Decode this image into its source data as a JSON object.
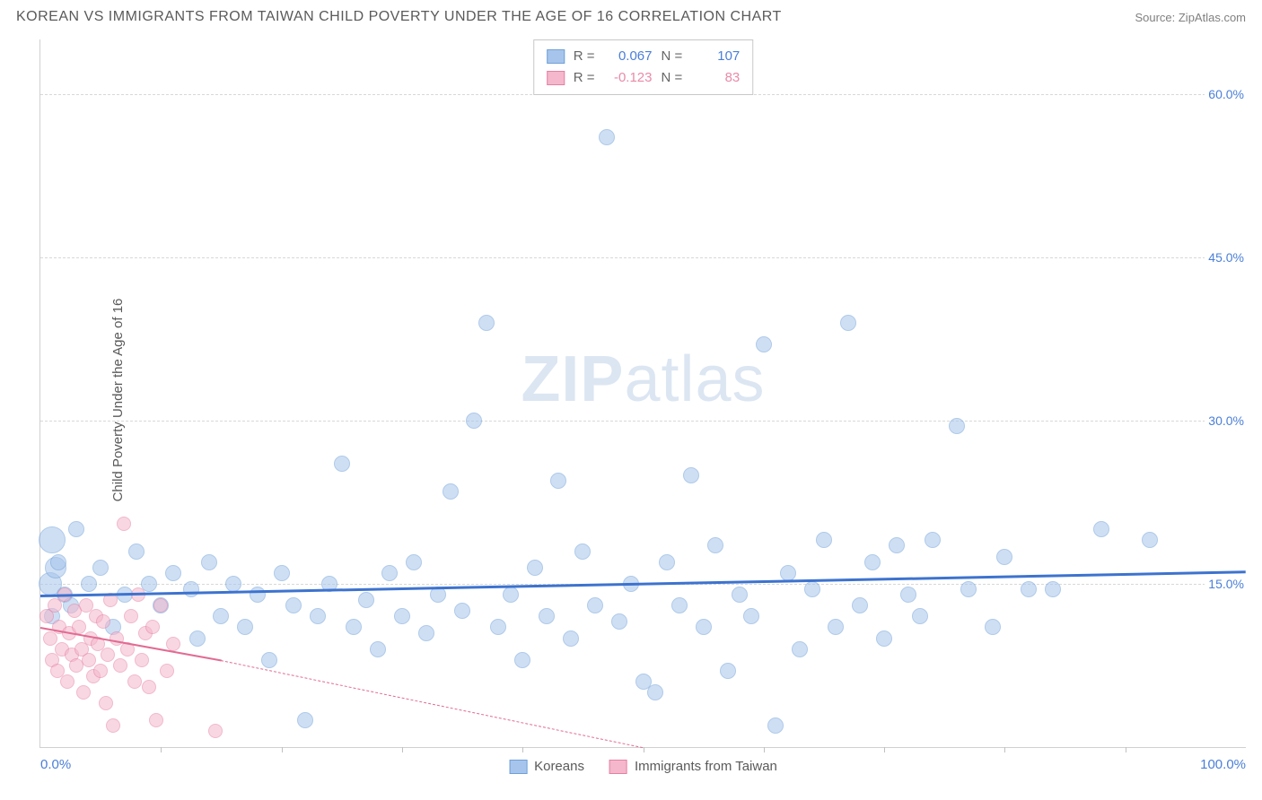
{
  "header": {
    "title": "KOREAN VS IMMIGRANTS FROM TAIWAN CHILD POVERTY UNDER THE AGE OF 16 CORRELATION CHART",
    "source": "Source: ZipAtlas.com"
  },
  "watermark": {
    "zip": "ZIP",
    "atlas": "atlas"
  },
  "chart": {
    "type": "scatter",
    "y_label": "Child Poverty Under the Age of 16",
    "xlim": [
      0,
      100
    ],
    "ylim": [
      0,
      65
    ],
    "x_ticks": {
      "min": "0.0%",
      "max": "100.0%",
      "minor_step": 10
    },
    "y_ticks": [
      {
        "value": 15,
        "label": "15.0%"
      },
      {
        "value": 30,
        "label": "30.0%"
      },
      {
        "value": 45,
        "label": "45.0%"
      },
      {
        "value": 60,
        "label": "60.0%"
      }
    ],
    "background_color": "#ffffff",
    "grid_color": "#d8d8d8",
    "series": [
      {
        "name": "Koreans",
        "fill": "#a7c5ec",
        "stroke": "#6f9fd8",
        "fill_opacity": 0.55,
        "marker_radius": 9,
        "trend": {
          "x1": 0,
          "y1": 14.0,
          "x2": 100,
          "y2": 16.2,
          "color": "#3d73cf",
          "width": 2.5
        },
        "points": [
          {
            "x": 1,
            "y": 19,
            "r": 15
          },
          {
            "x": 0.8,
            "y": 15,
            "r": 13
          },
          {
            "x": 1.3,
            "y": 16.5,
            "r": 12
          },
          {
            "x": 1,
            "y": 12
          },
          {
            "x": 2,
            "y": 14
          },
          {
            "x": 1.5,
            "y": 17
          },
          {
            "x": 3,
            "y": 20
          },
          {
            "x": 2.5,
            "y": 13
          },
          {
            "x": 4,
            "y": 15
          },
          {
            "x": 5,
            "y": 16.5
          },
          {
            "x": 6,
            "y": 11
          },
          {
            "x": 7,
            "y": 14
          },
          {
            "x": 8,
            "y": 18
          },
          {
            "x": 9,
            "y": 15
          },
          {
            "x": 10,
            "y": 13
          },
          {
            "x": 11,
            "y": 16
          },
          {
            "x": 12.5,
            "y": 14.5
          },
          {
            "x": 13,
            "y": 10
          },
          {
            "x": 14,
            "y": 17
          },
          {
            "x": 15,
            "y": 12
          },
          {
            "x": 16,
            "y": 15
          },
          {
            "x": 17,
            "y": 11
          },
          {
            "x": 18,
            "y": 14
          },
          {
            "x": 19,
            "y": 8
          },
          {
            "x": 20,
            "y": 16
          },
          {
            "x": 21,
            "y": 13
          },
          {
            "x": 22,
            "y": 2.5
          },
          {
            "x": 23,
            "y": 12
          },
          {
            "x": 24,
            "y": 15
          },
          {
            "x": 25,
            "y": 26
          },
          {
            "x": 26,
            "y": 11
          },
          {
            "x": 27,
            "y": 13.5
          },
          {
            "x": 28,
            "y": 9
          },
          {
            "x": 29,
            "y": 16
          },
          {
            "x": 30,
            "y": 12
          },
          {
            "x": 31,
            "y": 17
          },
          {
            "x": 32,
            "y": 10.5
          },
          {
            "x": 33,
            "y": 14
          },
          {
            "x": 34,
            "y": 23.5
          },
          {
            "x": 35,
            "y": 12.5
          },
          {
            "x": 36,
            "y": 30
          },
          {
            "x": 37,
            "y": 39
          },
          {
            "x": 38,
            "y": 11
          },
          {
            "x": 39,
            "y": 14
          },
          {
            "x": 40,
            "y": 8
          },
          {
            "x": 41,
            "y": 16.5
          },
          {
            "x": 42,
            "y": 12
          },
          {
            "x": 43,
            "y": 24.5
          },
          {
            "x": 44,
            "y": 10
          },
          {
            "x": 45,
            "y": 18
          },
          {
            "x": 46,
            "y": 13
          },
          {
            "x": 47,
            "y": 56
          },
          {
            "x": 48,
            "y": 11.5
          },
          {
            "x": 49,
            "y": 15
          },
          {
            "x": 50,
            "y": 6
          },
          {
            "x": 51,
            "y": 5
          },
          {
            "x": 52,
            "y": 17
          },
          {
            "x": 53,
            "y": 13
          },
          {
            "x": 54,
            "y": 25
          },
          {
            "x": 55,
            "y": 11
          },
          {
            "x": 56,
            "y": 18.5
          },
          {
            "x": 57,
            "y": 7
          },
          {
            "x": 58,
            "y": 14
          },
          {
            "x": 59,
            "y": 12
          },
          {
            "x": 60,
            "y": 37
          },
          {
            "x": 61,
            "y": 2
          },
          {
            "x": 62,
            "y": 16
          },
          {
            "x": 63,
            "y": 9
          },
          {
            "x": 64,
            "y": 14.5
          },
          {
            "x": 65,
            "y": 19
          },
          {
            "x": 66,
            "y": 11
          },
          {
            "x": 67,
            "y": 39
          },
          {
            "x": 68,
            "y": 13
          },
          {
            "x": 69,
            "y": 17
          },
          {
            "x": 70,
            "y": 10
          },
          {
            "x": 71,
            "y": 18.5
          },
          {
            "x": 72,
            "y": 14
          },
          {
            "x": 73,
            "y": 12
          },
          {
            "x": 74,
            "y": 19
          },
          {
            "x": 76,
            "y": 29.5
          },
          {
            "x": 77,
            "y": 14.5
          },
          {
            "x": 79,
            "y": 11
          },
          {
            "x": 80,
            "y": 17.5
          },
          {
            "x": 82,
            "y": 14.5
          },
          {
            "x": 84,
            "y": 14.5
          },
          {
            "x": 88,
            "y": 20
          },
          {
            "x": 92,
            "y": 19
          }
        ]
      },
      {
        "name": "Immigrants from Taiwan",
        "fill": "#f4b7cb",
        "stroke": "#e67fa3",
        "fill_opacity": 0.55,
        "marker_radius": 8,
        "trend": {
          "x1": 0,
          "y1": 11.0,
          "x2": 15,
          "y2": 8.0,
          "dash_to_x": 50,
          "dash_to_y": 0,
          "color": "#e26b93",
          "width": 2
        },
        "points": [
          {
            "x": 0.5,
            "y": 12
          },
          {
            "x": 0.8,
            "y": 10
          },
          {
            "x": 1,
            "y": 8
          },
          {
            "x": 1.2,
            "y": 13
          },
          {
            "x": 1.4,
            "y": 7
          },
          {
            "x": 1.6,
            "y": 11
          },
          {
            "x": 1.8,
            "y": 9
          },
          {
            "x": 2,
            "y": 14
          },
          {
            "x": 2.2,
            "y": 6
          },
          {
            "x": 2.4,
            "y": 10.5
          },
          {
            "x": 2.6,
            "y": 8.5
          },
          {
            "x": 2.8,
            "y": 12.5
          },
          {
            "x": 3,
            "y": 7.5
          },
          {
            "x": 3.2,
            "y": 11
          },
          {
            "x": 3.4,
            "y": 9
          },
          {
            "x": 3.6,
            "y": 5
          },
          {
            "x": 3.8,
            "y": 13
          },
          {
            "x": 4,
            "y": 8
          },
          {
            "x": 4.2,
            "y": 10
          },
          {
            "x": 4.4,
            "y": 6.5
          },
          {
            "x": 4.6,
            "y": 12
          },
          {
            "x": 4.8,
            "y": 9.5
          },
          {
            "x": 5,
            "y": 7
          },
          {
            "x": 5.2,
            "y": 11.5
          },
          {
            "x": 5.4,
            "y": 4
          },
          {
            "x": 5.6,
            "y": 8.5
          },
          {
            "x": 5.8,
            "y": 13.5
          },
          {
            "x": 6,
            "y": 2
          },
          {
            "x": 6.3,
            "y": 10
          },
          {
            "x": 6.6,
            "y": 7.5
          },
          {
            "x": 6.9,
            "y": 20.5
          },
          {
            "x": 7.2,
            "y": 9
          },
          {
            "x": 7.5,
            "y": 12
          },
          {
            "x": 7.8,
            "y": 6
          },
          {
            "x": 8.1,
            "y": 14
          },
          {
            "x": 8.4,
            "y": 8
          },
          {
            "x": 8.7,
            "y": 10.5
          },
          {
            "x": 9,
            "y": 5.5
          },
          {
            "x": 9.3,
            "y": 11
          },
          {
            "x": 9.6,
            "y": 2.5
          },
          {
            "x": 10,
            "y": 13
          },
          {
            "x": 10.5,
            "y": 7
          },
          {
            "x": 11,
            "y": 9.5
          },
          {
            "x": 14.5,
            "y": 1.5
          }
        ]
      }
    ],
    "stat_legend": [
      {
        "swatch_fill": "#a7c5ec",
        "swatch_stroke": "#6f9fd8",
        "r": "0.067",
        "n": "107",
        "val_class": "stat-val-blue"
      },
      {
        "swatch_fill": "#f4b7cb",
        "swatch_stroke": "#e67fa3",
        "r": "-0.123",
        "n": "83",
        "val_class": "stat-val-pink"
      }
    ],
    "bottom_legend": [
      {
        "swatch_fill": "#a7c5ec",
        "swatch_stroke": "#6f9fd8",
        "label": "Koreans"
      },
      {
        "swatch_fill": "#f4b7cb",
        "swatch_stroke": "#e67fa3",
        "label": "Immigrants from Taiwan"
      }
    ]
  }
}
